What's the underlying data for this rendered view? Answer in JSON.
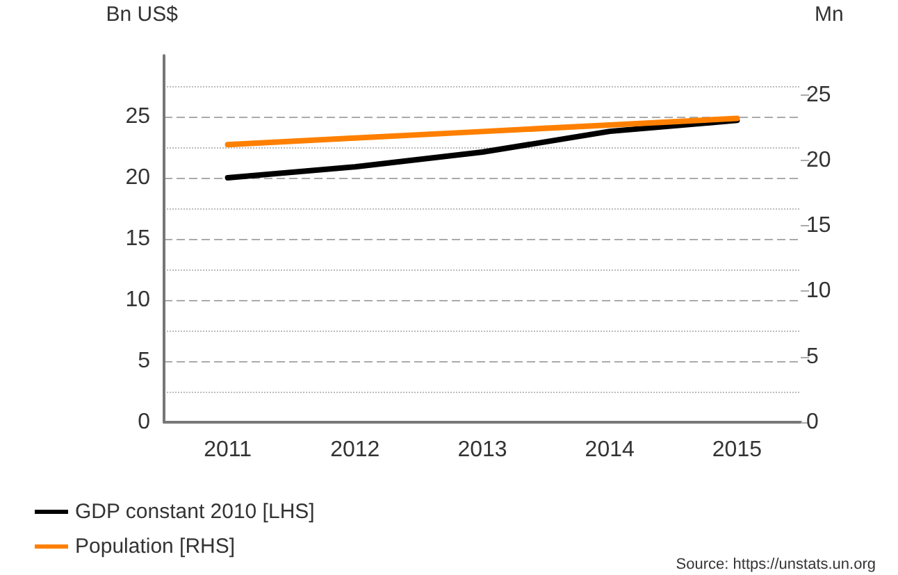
{
  "chart_data": {
    "type": "line",
    "ylabel": "Bn US$",
    "y2label": "Mn",
    "categories": [
      "2011",
      "2012",
      "2013",
      "2014",
      "2015"
    ],
    "series": [
      {
        "name": "GDP constant 2010 [LHS]",
        "color": "#000000",
        "values": [
          20.0,
          20.9,
          22.1,
          23.8,
          24.7
        ]
      },
      {
        "name": "Population [RHS]",
        "color": "#ff8000",
        "axis": "y2",
        "values": [
          21.2,
          21.7,
          22.2,
          22.7,
          23.2
        ]
      }
    ],
    "ylim": [
      0,
      30
    ],
    "yticks": [
      0,
      5,
      10,
      15,
      20,
      25
    ],
    "y2lim": [
      0,
      28
    ],
    "y2ticks": [
      0,
      5,
      10,
      15,
      20,
      25
    ],
    "grid": "y",
    "legend": "bottom left",
    "marker": "none",
    "line_style": "solid",
    "annotations": [
      "Source: https://unstats.un.org"
    ]
  }
}
